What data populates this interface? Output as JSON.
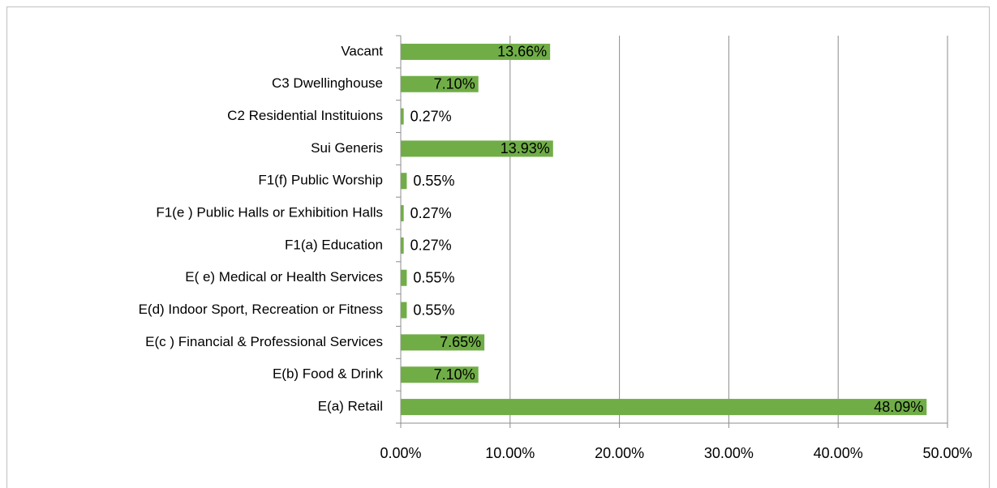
{
  "chart_data": {
    "type": "bar",
    "orientation": "horizontal",
    "categories": [
      "Vacant",
      "C3 Dwellinghouse",
      "C2 Residential Instituions",
      "Sui Generis",
      "F1(f) Public Worship",
      "F1(e ) Public Halls or Exhibition Halls",
      "F1(a) Education",
      "E( e) Medical or Health Services",
      "E(d) Indoor Sport, Recreation or Fitness",
      "E(c ) Financial & Professional Services",
      "E(b) Food & Drink",
      "E(a) Retail"
    ],
    "values": [
      13.66,
      7.1,
      0.27,
      13.93,
      0.55,
      0.27,
      0.27,
      0.55,
      0.55,
      7.65,
      7.1,
      48.09
    ],
    "value_labels": [
      "13.66%",
      "7.10%",
      "0.27%",
      "13.93%",
      "0.55%",
      "0.27%",
      "0.27%",
      "0.55%",
      "0.55%",
      "7.65%",
      "7.10%",
      "48.09%"
    ],
    "color": "#70ad47",
    "xlim": [
      0,
      50
    ],
    "xticks": [
      {
        "value": 0,
        "label": "0.00%"
      },
      {
        "value": 10,
        "label": "10.00%"
      },
      {
        "value": 20,
        "label": "20.00%"
      },
      {
        "value": 30,
        "label": "30.00%"
      },
      {
        "value": 40,
        "label": "40.00%"
      },
      {
        "value": 50,
        "label": "50.00%"
      }
    ],
    "grid": true
  }
}
